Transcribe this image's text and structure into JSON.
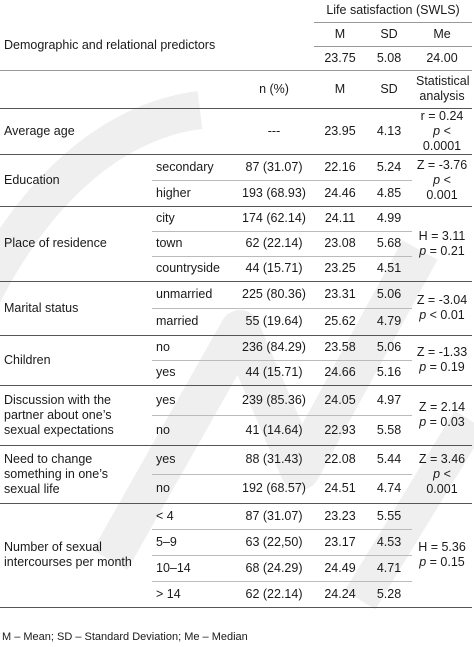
{
  "header": {
    "life_satisfaction": "Life satisfaction (SWLS)",
    "col_M": "M",
    "col_SD": "SD",
    "col_Me": "Me",
    "predictors_label": "Demographic and relational predictors",
    "overall_M": "23.75",
    "overall_SD": "5.08",
    "overall_Me": "24.00",
    "col_n": "n (%)",
    "col_M2": "M",
    "col_SD2": "SD",
    "col_stat_line1": "Statistical",
    "col_stat_line2": "analysis"
  },
  "rows": {
    "age": {
      "label": "Average age",
      "n": "---",
      "M": "23.95",
      "SD": "4.13",
      "stat1": "r = 0.24",
      "stat2_p": "p",
      "stat2_rest": " < 0.0001"
    },
    "education": {
      "label": "Education",
      "sub": [
        {
          "name": "secondary",
          "n": "87 (31.07)",
          "M": "22.16",
          "SD": "5.24"
        },
        {
          "name": "higher",
          "n": "193 (68.93)",
          "M": "24.46",
          "SD": "4.85"
        }
      ],
      "stat1": "Z = -3.76",
      "stat2_p": "p",
      "stat2_rest": " < 0.001"
    },
    "residence": {
      "label": "Place of residence",
      "sub": [
        {
          "name": "city",
          "n": "174 (62.14)",
          "M": "24.11",
          "SD": "4.99"
        },
        {
          "name": "town",
          "n": "62 (22.14)",
          "M": "23.08",
          "SD": "5.68"
        },
        {
          "name": "countryside",
          "n": "44 (15.71)",
          "M": "23.25",
          "SD": "4.51"
        }
      ],
      "stat1": "H = 3.11",
      "stat2_p": "p",
      "stat2_rest": " = 0.21"
    },
    "marital": {
      "label": "Marital status",
      "sub": [
        {
          "name": "unmarried",
          "n": "225 (80.36)",
          "M": "23.31",
          "SD": "5.06"
        },
        {
          "name": "married",
          "n": "55 (19.64)",
          "M": "25.62",
          "SD": "4.79"
        }
      ],
      "stat1": "Z = -3.04",
      "stat2_p": "p",
      "stat2_rest": " < 0.01"
    },
    "children": {
      "label": "Children",
      "sub": [
        {
          "name": "no",
          "n": "236 (84.29)",
          "M": "23.58",
          "SD": "5.06"
        },
        {
          "name": "yes",
          "n": "44 (15.71)",
          "M": "24.66",
          "SD": "5.16"
        }
      ],
      "stat1": "Z = -1.33",
      "stat2_p": "p",
      "stat2_rest": " = 0.19"
    },
    "discussion": {
      "label_lines": [
        "Discussion with the",
        "partner about one’s",
        "sexual expectations"
      ],
      "sub": [
        {
          "name": "yes",
          "n": "239 (85.36)",
          "M": "24.05",
          "SD": "4.97"
        },
        {
          "name": "no",
          "n": "41 (14.64)",
          "M": "22.93",
          "SD": "5.58"
        }
      ],
      "stat1": "Z = 2.14",
      "stat2_p": "p",
      "stat2_rest": " = 0.03"
    },
    "change": {
      "label_lines": [
        "Need to change",
        "something in one’s",
        "sexual life"
      ],
      "sub": [
        {
          "name": "yes",
          "n": "88 (31.43)",
          "M": "22.08",
          "SD": "5.44"
        },
        {
          "name": "no",
          "n": "192 (68.57)",
          "M": "24.51",
          "SD": "4.74"
        }
      ],
      "stat1": "Z = 3.46",
      "stat2_p": "p",
      "stat2_rest": " < 0.001"
    },
    "intercourse": {
      "label_lines": [
        "Number of sexual",
        "intercourses per month"
      ],
      "sub": [
        {
          "name": "< 4",
          "n": "87 (31.07)",
          "M": "23.23",
          "SD": "5.55"
        },
        {
          "name": "5–9",
          "n": "63 (22,50)",
          "M": "23.17",
          "SD": "4.53"
        },
        {
          "name": "10–14",
          "n": "68 (24.29)",
          "M": "24.49",
          "SD": "4.71"
        },
        {
          "name": "> 14",
          "n": "62 (22.14)",
          "M": "24.24",
          "SD": "5.28"
        }
      ],
      "stat1": "H = 5.36",
      "stat2_p": "p",
      "stat2_rest": " = 0.15"
    }
  },
  "footer": "M – Mean; SD – Standard Deviation; Me – Median",
  "colors": {
    "text": "#1a1a1a",
    "rule": "#555555",
    "watermark": "#efefef"
  }
}
